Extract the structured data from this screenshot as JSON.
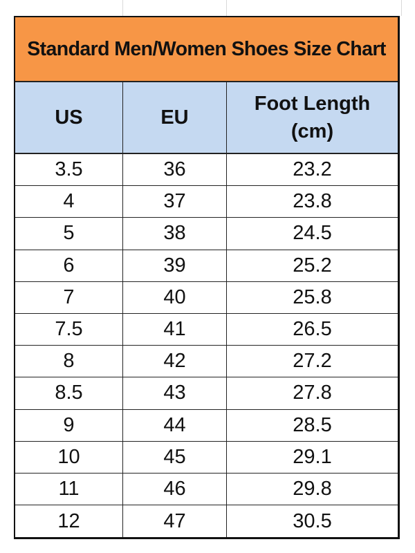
{
  "title": "Standard Men/Women Shoes Size Chart",
  "columns": [
    "US",
    "EU",
    "Foot Length\n(cm)"
  ],
  "column_lines": [
    "Foot Length",
    "(cm)"
  ],
  "colors": {
    "title_bg": "#f79646",
    "header_bg": "#c5d9f1"
  },
  "rows": [
    [
      "3.5",
      "36",
      "23.2"
    ],
    [
      "4",
      "37",
      "23.8"
    ],
    [
      "5",
      "38",
      "24.5"
    ],
    [
      "6",
      "39",
      "25.2"
    ],
    [
      "7",
      "40",
      "25.8"
    ],
    [
      "7.5",
      "41",
      "26.5"
    ],
    [
      "8",
      "42",
      "27.2"
    ],
    [
      "8.5",
      "43",
      "27.8"
    ],
    [
      "9",
      "44",
      "28.5"
    ],
    [
      "10",
      "45",
      "29.1"
    ],
    [
      "11",
      "46",
      "29.8"
    ],
    [
      "12",
      "47",
      "30.5"
    ]
  ]
}
